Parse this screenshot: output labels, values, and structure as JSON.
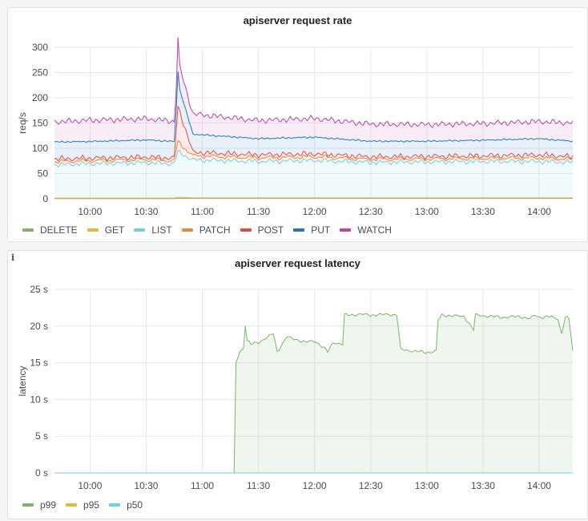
{
  "chart_data": [
    {
      "type": "line",
      "title": "apiserver request rate",
      "ylabel": "req/s",
      "xlabel": "",
      "ylim": [
        0,
        300
      ],
      "yticks": [
        0,
        50,
        100,
        150,
        200,
        250,
        300
      ],
      "ytick_labels": [
        "0",
        "50",
        "100",
        "150",
        "200",
        "250",
        "300"
      ],
      "xlim": [
        "09:41",
        "14:18"
      ],
      "xticks": [
        "10:00",
        "10:30",
        "11:00",
        "11:30",
        "12:00",
        "12:30",
        "13:00",
        "13:30",
        "14:00"
      ],
      "grid": true,
      "legend_position": "bottom-left",
      "stacked": true,
      "series": [
        {
          "name": "DELETE",
          "color": "#7eb26d",
          "x": [
            "09:41",
            "10:00",
            "10:30",
            "10:45",
            "10:47",
            "10:55",
            "11:30",
            "12:00",
            "12:30",
            "13:00",
            "13:30",
            "14:00",
            "14:18"
          ],
          "values": [
            0.5,
            0.5,
            0.5,
            0.5,
            1,
            1,
            1,
            1,
            1,
            1,
            1,
            1,
            1
          ]
        },
        {
          "name": "GET",
          "color": "#eab839",
          "x": [
            "09:41",
            "10:00",
            "10:30",
            "10:45",
            "10:47",
            "10:55",
            "11:30",
            "12:00",
            "12:30",
            "13:00",
            "13:30",
            "14:00",
            "14:18"
          ],
          "values": [
            1,
            1,
            1,
            1,
            2,
            1,
            1,
            1,
            1,
            1,
            1,
            1,
            1
          ]
        },
        {
          "name": "LIST",
          "color": "#6ed0e0",
          "x": [
            "09:41",
            "10:00",
            "10:30",
            "10:45",
            "10:47",
            "10:55",
            "11:30",
            "12:00",
            "12:30",
            "13:00",
            "13:30",
            "14:00",
            "14:18"
          ],
          "values": [
            66,
            68,
            70,
            68,
            90,
            75,
            72,
            74,
            70,
            71,
            72,
            72,
            70
          ]
        },
        {
          "name": "PATCH",
          "color": "#ef843c",
          "x": [
            "09:41",
            "10:00",
            "10:30",
            "10:45",
            "10:47",
            "10:55",
            "11:30",
            "12:00",
            "12:30",
            "13:00",
            "13:30",
            "14:00",
            "14:18"
          ],
          "values": [
            6,
            6,
            6,
            6,
            20,
            8,
            7,
            7,
            6,
            6,
            6,
            7,
            6
          ]
        },
        {
          "name": "POST",
          "color": "#e24d42",
          "x": [
            "09:41",
            "10:00",
            "10:30",
            "10:45",
            "10:47",
            "10:55",
            "11:30",
            "12:00",
            "12:30",
            "13:00",
            "13:30",
            "14:00",
            "14:18"
          ],
          "values": [
            5,
            5,
            5,
            5,
            70,
            7,
            6,
            6,
            5,
            5,
            5,
            6,
            5
          ]
        },
        {
          "name": "PUT",
          "color": "#1f78c1",
          "x": [
            "09:41",
            "10:00",
            "10:30",
            "10:45",
            "10:47",
            "10:55",
            "11:30",
            "12:00",
            "12:30",
            "13:00",
            "13:30",
            "14:00",
            "14:18"
          ],
          "values": [
            34,
            33,
            34,
            33,
            45,
            36,
            32,
            33,
            31,
            30,
            31,
            32,
            31
          ]
        },
        {
          "name": "WATCH",
          "color": "#ba43a9",
          "x": [
            "09:41",
            "10:00",
            "10:30",
            "10:45",
            "10:47",
            "10:55",
            "11:30",
            "12:00",
            "12:30",
            "13:00",
            "13:30",
            "14:00",
            "14:18"
          ],
          "values": [
            40,
            42,
            42,
            40,
            45,
            40,
            36,
            37,
            34,
            33,
            33,
            34,
            36
          ]
        }
      ]
    },
    {
      "type": "line",
      "title": "apiserver request latency",
      "ylabel": "latency",
      "xlabel": "",
      "ylim": [
        0,
        25
      ],
      "yticks": [
        0,
        5,
        10,
        15,
        20,
        25
      ],
      "ytick_labels": [
        "0 s",
        "5 s",
        "10 s",
        "15 s",
        "20 s",
        "25 s"
      ],
      "xlim": [
        "09:41",
        "14:18"
      ],
      "xticks": [
        "10:00",
        "10:30",
        "11:00",
        "11:30",
        "12:00",
        "12:30",
        "13:00",
        "13:30",
        "14:00"
      ],
      "grid": true,
      "legend_position": "bottom-left",
      "series": [
        {
          "name": "p99",
          "color": "#7eb26d",
          "x": [
            "09:41",
            "11:17",
            "11:18",
            "11:20",
            "11:22",
            "11:23",
            "11:24",
            "11:26",
            "11:30",
            "11:35",
            "11:38",
            "11:40",
            "11:45",
            "11:50",
            "11:55",
            "12:00",
            "12:05",
            "12:07",
            "12:10",
            "12:15",
            "12:16",
            "12:25",
            "12:30",
            "12:40",
            "12:44",
            "12:46",
            "13:00",
            "13:05",
            "13:06",
            "13:08",
            "13:20",
            "13:25",
            "13:26",
            "13:40",
            "13:50",
            "13:55",
            "13:58",
            "14:00",
            "14:05",
            "14:10",
            "14:12",
            "14:14",
            "14:16",
            "14:18"
          ],
          "values": [
            0,
            0,
            15,
            16.5,
            17,
            20.2,
            18,
            17.5,
            17.8,
            18.5,
            19,
            16.5,
            18.5,
            18.2,
            17.8,
            18,
            17,
            16.5,
            17.8,
            17.5,
            21.5,
            21.6,
            21.5,
            21.6,
            21.5,
            16.8,
            16.4,
            16.6,
            20.8,
            21.5,
            21.3,
            19.5,
            21.5,
            21.2,
            21.3,
            21,
            21.5,
            21.2,
            21.3,
            21,
            19,
            21.2,
            21,
            16.5
          ]
        },
        {
          "name": "p95",
          "color": "#eab839",
          "x": [
            "09:41",
            "14:18"
          ],
          "values": [
            0,
            0
          ]
        },
        {
          "name": "p50",
          "color": "#6ed0e0",
          "x": [
            "09:41",
            "14:18"
          ],
          "values": [
            0,
            0
          ]
        }
      ]
    }
  ]
}
